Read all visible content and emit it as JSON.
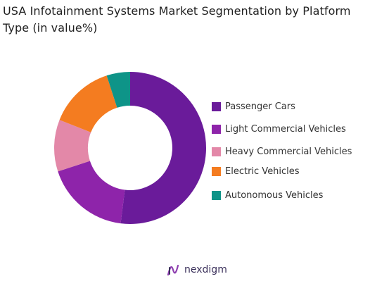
{
  "title_lines": [
    "USA Infotainment Systems Market Segmentation by Platform",
    "Type (in value%)"
  ],
  "chart_data": {
    "type": "pie",
    "title": "USA Infotainment Systems Market Segmentation by Platform Type (in value%)",
    "donut": true,
    "categories": [
      "Passenger Cars",
      "Light Commercial Vehicles",
      "Heavy Commercial Vehicles",
      "Electric Vehicles",
      "Autonomous Vehicles"
    ],
    "values": [
      52,
      18,
      11,
      14,
      5
    ],
    "colors": [
      "#6a1b9a",
      "#8e24aa",
      "#e388a8",
      "#f47c20",
      "#0e9488"
    ],
    "legend_position": "right"
  },
  "brand": {
    "name": "nexdigm",
    "icon": "nexdigm-logo-icon"
  }
}
